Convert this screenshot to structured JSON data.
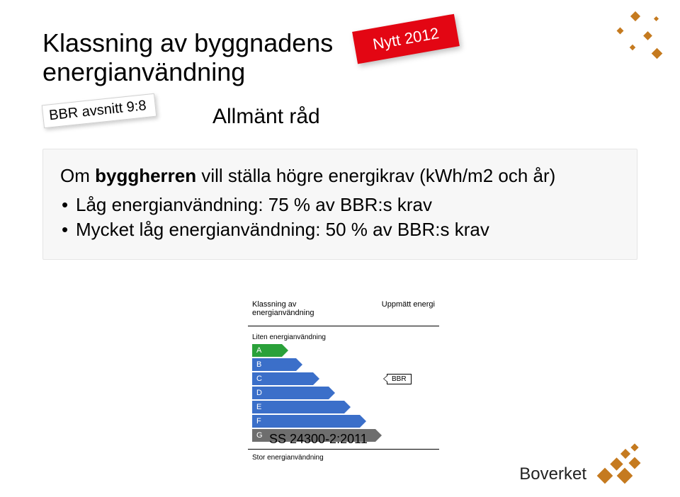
{
  "title_line1": "Klassning av byggnadens",
  "title_line2": "energianvändning",
  "badge": "Nytt 2012",
  "bbr_tag": "BBR avsnitt 9:8",
  "subhead": "Allmänt råd",
  "content": {
    "lead_prefix": "Om ",
    "lead_bold": "byggherren",
    "lead_suffix": " vill ställa högre energikrav (kWh/m2 och år)",
    "bullets": [
      "Låg energianvändning: 75 % av BBR:s krav",
      "Mycket låg energianvändning: 50 % av BBR:s krav"
    ]
  },
  "diagram": {
    "header_left": "Klassning av energianvändning",
    "header_right": "Uppmätt energi",
    "label_top": "Liten energianvändning",
    "rows": [
      {
        "letter": "A",
        "width": 42,
        "color": "#2aa13a"
      },
      {
        "letter": "B",
        "width": 62,
        "color": "#3b6fc9"
      },
      {
        "letter": "C",
        "width": 86,
        "color": "#3b6fc9",
        "pointer": "BBR"
      },
      {
        "letter": "D",
        "width": 108,
        "color": "#3b6fc9"
      },
      {
        "letter": "E",
        "width": 130,
        "color": "#3b6fc9"
      },
      {
        "letter": "F",
        "width": 152,
        "color": "#3b6fc9"
      },
      {
        "letter": "G",
        "width": 174,
        "color": "#6e6e6e"
      }
    ],
    "label_bottom": "Stor energianvändning"
  },
  "caption": "SS 24300-2:2011",
  "logo_text": "Boverket",
  "colors": {
    "badge_bg": "#e30613",
    "box_bg": "#f7f7f7",
    "accent": "#c57a1f"
  }
}
